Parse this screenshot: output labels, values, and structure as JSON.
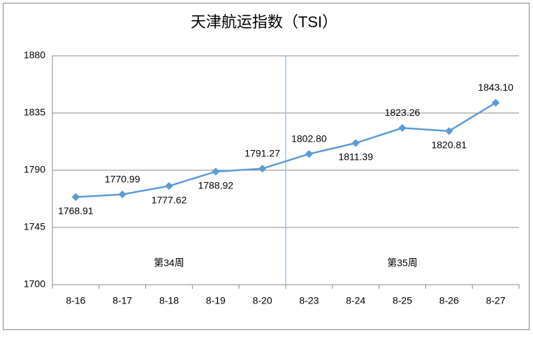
{
  "chart_data": {
    "type": "line",
    "title": "天津航运指数（TSI）",
    "categories": [
      "8-16",
      "8-17",
      "8-18",
      "8-19",
      "8-20",
      "8-23",
      "8-24",
      "8-25",
      "8-26",
      "8-27"
    ],
    "values": [
      1768.91,
      1770.99,
      1777.62,
      1788.92,
      1791.27,
      1802.8,
      1811.39,
      1823.26,
      1820.81,
      1843.1
    ],
    "value_labels": [
      "1768.91",
      "1770.99",
      "1777.62",
      "1788.92",
      "1791.27",
      "1802.80",
      "1811.39",
      "1823.26",
      "1820.81",
      "1843.10"
    ],
    "color": "#5b9bd5",
    "ylim": [
      1700,
      1880
    ],
    "yticks": [
      1700,
      1745,
      1790,
      1835,
      1880
    ],
    "grid": true,
    "annotations": [
      "第34周",
      "第35周"
    ]
  }
}
